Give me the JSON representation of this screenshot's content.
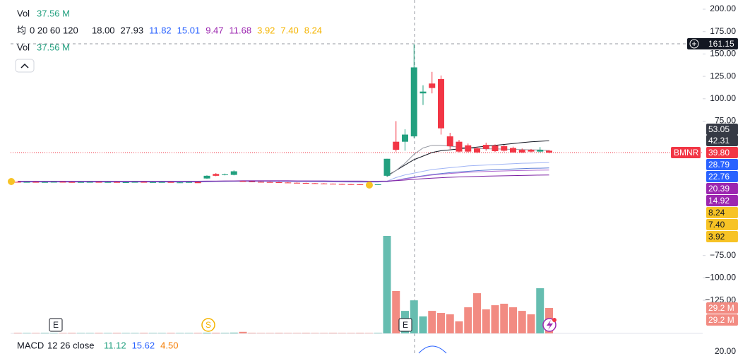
{
  "legend": {
    "vol_label": "Vol",
    "vol_value": "37.56 M",
    "ma_label": "均",
    "ma_params": "0 20 60 120",
    "ma_values": [
      "18.00",
      "27.93",
      "11.82",
      "15.01",
      "9.47",
      "11.68",
      "3.92",
      "7.40",
      "8.24"
    ],
    "vol2_label": "Vol",
    "vol2_value": "37.56 M"
  },
  "macd": {
    "label": "MACD",
    "params": "12 26 close",
    "values": [
      "11.12",
      "15.62",
      "4.50"
    ],
    "tick": "20.00"
  },
  "price_axis": {
    "ylim": [
      -160,
      200
    ],
    "yticks": [
      {
        "value": 200,
        "label": "200.00"
      },
      {
        "value": 175,
        "label": "175.00"
      },
      {
        "value": 150,
        "label": "150.00"
      },
      {
        "value": 125,
        "label": "125.00"
      },
      {
        "value": 100,
        "label": "100.00"
      },
      {
        "value": 75,
        "label": "75.00"
      },
      {
        "value": -75,
        "label": "−75.00"
      },
      {
        "value": -100,
        "label": "−100.00"
      },
      {
        "value": -125,
        "label": "−125.00"
      }
    ]
  },
  "symbol": "BMNR",
  "crosshair_price": "161.15",
  "badges": [
    "53.05",
    "42.31",
    "39.80",
    "28.79",
    "22.76",
    "20.39",
    "14.92",
    "8.24",
    "7.40",
    "3.92",
    "29.2 M",
    "29.2 M"
  ],
  "markers": [
    "E",
    "S",
    "E"
  ],
  "candles": [
    [
      7.2,
      7.6,
      6.8,
      7.0
    ],
    [
      7.0,
      7.4,
      6.7,
      7.1
    ],
    [
      7.1,
      7.5,
      6.8,
      6.9
    ],
    [
      6.9,
      7.3,
      6.6,
      7.0
    ],
    [
      7.0,
      7.4,
      6.8,
      7.2
    ],
    [
      7.2,
      7.6,
      6.9,
      7.0
    ],
    [
      7.0,
      7.3,
      6.7,
      6.8
    ],
    [
      6.8,
      7.2,
      6.5,
      7.0
    ],
    [
      7.0,
      7.4,
      6.8,
      7.1
    ],
    [
      7.1,
      7.5,
      6.9,
      6.9
    ],
    [
      6.9,
      7.2,
      6.6,
      7.0
    ],
    [
      7.0,
      7.6,
      6.8,
      6.6
    ],
    [
      6.6,
      7.0,
      6.3,
      6.8
    ],
    [
      6.8,
      7.3,
      6.6,
      7.1
    ],
    [
      7.1,
      7.5,
      6.9,
      6.7
    ],
    [
      6.7,
      7.1,
      6.4,
      6.9
    ],
    [
      6.9,
      7.3,
      6.7,
      7.0
    ],
    [
      7.0,
      7.4,
      6.8,
      6.2
    ],
    [
      6.2,
      6.8,
      6.0,
      6.6
    ],
    [
      6.6,
      7.0,
      6.3,
      7.0
    ],
    [
      7.0,
      7.5,
      6.7,
      5.8
    ],
    [
      11.0,
      14.5,
      10.5,
      14.0
    ],
    [
      16.0,
      17.0,
      13.5,
      14.0
    ],
    [
      15.0,
      16.5,
      14.5,
      15.5
    ],
    [
      15.0,
      20.0,
      14.5,
      19.0
    ],
    [
      8.0,
      8.5,
      7.2,
      7.6
    ],
    [
      7.6,
      8.0,
      7.0,
      7.2
    ],
    [
      7.2,
      7.6,
      6.8,
      7.0
    ],
    [
      7.0,
      7.4,
      6.5,
      6.8
    ],
    [
      6.8,
      7.1,
      6.3,
      6.5
    ],
    [
      6.5,
      6.9,
      6.1,
      6.2
    ],
    [
      6.2,
      6.6,
      5.8,
      6.0
    ],
    [
      6.0,
      6.3,
      5.5,
      5.7
    ],
    [
      5.7,
      6.0,
      5.2,
      5.4
    ],
    [
      5.4,
      5.8,
      5.0,
      5.1
    ],
    [
      5.1,
      5.4,
      4.7,
      4.8
    ],
    [
      4.8,
      5.1,
      4.5,
      4.6
    ],
    [
      4.6,
      4.9,
      4.2,
      4.4
    ],
    [
      4.4,
      4.7,
      4.0,
      4.2
    ],
    [
      4.2,
      4.6,
      3.9,
      4.1
    ],
    [
      4.1,
      4.6,
      3.8,
      4.4
    ],
    [
      14.0,
      33.0,
      13.0,
      33.0
    ],
    [
      52.0,
      75.0,
      41.0,
      43.0
    ],
    [
      52.0,
      66.0,
      42.0,
      60.0
    ],
    [
      58.0,
      161.0,
      56.0,
      135.0
    ],
    [
      106.0,
      115.0,
      93.0,
      108.0
    ],
    [
      117.0,
      130.0,
      106.0,
      112.0
    ],
    [
      122.0,
      126.0,
      60.0,
      67.0
    ],
    [
      58.0,
      62.0,
      44.0,
      47.0
    ],
    [
      52.0,
      54.0,
      40.0,
      41.0
    ],
    [
      48.0,
      50.0,
      40.0,
      41.0
    ],
    [
      44.6,
      46.0,
      39.0,
      40.0
    ],
    [
      48.5,
      51.0,
      42.0,
      44.0
    ],
    [
      47.7,
      49.0,
      40.5,
      41.5
    ],
    [
      47.0,
      48.5,
      41.0,
      42.0
    ],
    [
      45.0,
      46.5,
      39.5,
      40.0
    ],
    [
      43.0,
      44.5,
      39.5,
      40.0
    ],
    [
      43.0,
      44.0,
      40.0,
      41.0
    ],
    [
      41.0,
      46.0,
      40.0,
      43.0
    ],
    [
      42.0,
      43.0,
      39.0,
      39.8
    ]
  ],
  "volume": [
    0.6,
    0.5,
    0.5,
    0.6,
    0.5,
    0.5,
    0.6,
    0.5,
    0.5,
    0.6,
    0.5,
    0.6,
    0.5,
    0.5,
    0.6,
    0.5,
    0.5,
    0.6,
    0.5,
    0.5,
    0.6,
    0.8,
    0.7,
    0.6,
    0.9,
    1.8,
    0.6,
    0.5,
    0.5,
    0.6,
    0.5,
    0.5,
    0.6,
    0.5,
    0.5,
    0.6,
    0.5,
    0.5,
    0.6,
    0.5,
    0.6,
    112.0,
    48.7,
    25.9,
    38.0,
    19.5,
    25.9,
    23.5,
    21.9,
    13.8,
    30.0,
    46.2,
    27.6,
    32.4,
    34.1,
    30.0,
    25.9,
    21.9,
    51.9,
    29.2
  ],
  "ma_lines": [
    {
      "color": "#131722",
      "values": [
        null,
        null,
        null,
        null,
        null,
        null,
        null,
        null,
        null,
        null,
        null,
        null,
        null,
        null,
        null,
        null,
        null,
        null,
        null,
        null,
        null,
        null,
        null,
        null,
        null,
        null,
        null,
        null,
        null,
        null,
        null,
        null,
        null,
        null,
        null,
        null,
        null,
        null,
        null,
        null,
        null,
        14,
        20,
        26,
        32,
        36,
        40,
        42,
        43,
        44,
        45,
        46,
        47,
        48,
        49,
        50,
        51,
        52,
        52.5,
        53.05
      ]
    },
    {
      "color": "#9598a1",
      "values": [
        null,
        null,
        null,
        null,
        null,
        null,
        null,
        null,
        null,
        null,
        null,
        null,
        null,
        null,
        null,
        null,
        null,
        null,
        null,
        null,
        null,
        null,
        null,
        null,
        null,
        null,
        null,
        null,
        null,
        null,
        null,
        null,
        null,
        null,
        null,
        null,
        null,
        null,
        null,
        null,
        null,
        13,
        20,
        28,
        38,
        45,
        48,
        48,
        47,
        46,
        45,
        44.5,
        44,
        44,
        43.8,
        43.5,
        43.2,
        43,
        42.8,
        42.31
      ]
    },
    {
      "color": "#a0b4f5",
      "values": [
        7,
        7,
        7,
        7,
        7,
        7,
        7,
        7,
        7,
        7,
        7,
        7,
        7,
        7,
        7,
        7,
        7,
        7,
        7,
        7,
        7,
        7.3,
        7.6,
        7.9,
        8.2,
        8.2,
        8.1,
        8,
        7.9,
        7.8,
        7.7,
        7.6,
        7.5,
        7.4,
        7.3,
        7.2,
        7.1,
        7,
        6.9,
        6.9,
        7,
        8,
        12,
        15,
        17,
        19,
        21,
        22,
        23,
        24,
        25,
        25.5,
        26,
        26.5,
        27,
        27.5,
        28,
        28.2,
        28.5,
        28.79
      ]
    },
    {
      "color": "#5b7bd6",
      "values": [
        7.5,
        7.5,
        7.5,
        7.5,
        7.5,
        7.5,
        7.5,
        7.5,
        7.5,
        7.5,
        7.5,
        7.5,
        7.5,
        7.5,
        7.5,
        7.5,
        7.5,
        7.5,
        7.5,
        7.5,
        7.5,
        7.6,
        7.7,
        7.8,
        7.9,
        8,
        8,
        8,
        8,
        8,
        8,
        7.9,
        7.9,
        7.8,
        7.8,
        7.7,
        7.7,
        7.6,
        7.6,
        7.5,
        7.5,
        7.5,
        9,
        11,
        12.5,
        14,
        15.5,
        16.5,
        17.5,
        18.3,
        19,
        19.7,
        20.3,
        20.8,
        21.2,
        21.6,
        22,
        22.3,
        22.5,
        22.76
      ]
    },
    {
      "color": "#b06ad0",
      "values": [
        8,
        8,
        8,
        8,
        8,
        8,
        8,
        8,
        8,
        8,
        8,
        8,
        8,
        8,
        8,
        8,
        8,
        8,
        8,
        8,
        8,
        8.1,
        8.2,
        8.3,
        8.4,
        8.5,
        8.5,
        8.5,
        8.5,
        8.5,
        8.5,
        8.4,
        8.4,
        8.3,
        8.3,
        8.2,
        8.2,
        8.1,
        8.1,
        8,
        8,
        8.2,
        9,
        10.5,
        12,
        13.5,
        14.8,
        15.8,
        16.6,
        17.3,
        17.9,
        18.4,
        18.8,
        19.1,
        19.4,
        19.7,
        19.9,
        20.1,
        20.25,
        20.39
      ]
    },
    {
      "color": "#7b1fa2",
      "values": [
        7.8,
        7.8,
        7.8,
        7.8,
        7.8,
        7.8,
        7.8,
        7.8,
        7.8,
        7.8,
        7.8,
        7.8,
        7.8,
        7.8,
        7.8,
        7.8,
        7.8,
        7.8,
        7.8,
        7.8,
        7.8,
        7.9,
        8,
        8.1,
        8.2,
        8.3,
        8.3,
        8.3,
        8.3,
        8.3,
        8.3,
        8.2,
        8.2,
        8.1,
        8.1,
        8,
        8,
        7.9,
        7.9,
        7.8,
        7.8,
        7.9,
        8.5,
        9.2,
        10,
        10.7,
        11.3,
        11.8,
        12.3,
        12.7,
        13,
        13.3,
        13.6,
        13.8,
        14,
        14.2,
        14.4,
        14.6,
        14.75,
        14.92
      ]
    }
  ]
}
